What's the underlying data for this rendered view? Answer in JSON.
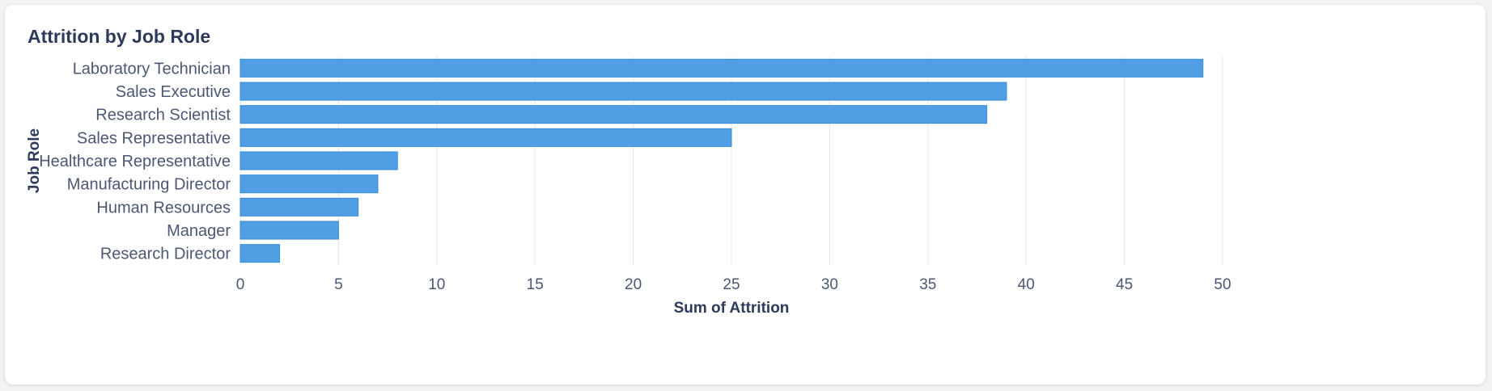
{
  "card": {
    "title": "Attrition by Job Role"
  },
  "colors": {
    "bar": "#509ee3",
    "bar_stroke": "#3a8bd6",
    "grid": "#e6e8eb",
    "text": "#4c5773",
    "title": "#2e3a59"
  },
  "chart_data": {
    "type": "bar",
    "orientation": "horizontal",
    "title": "Attrition by Job Role",
    "xlabel": "Sum of Attrition",
    "ylabel": "Job Role",
    "xlim": [
      0,
      50
    ],
    "x_ticks": [
      0,
      5,
      10,
      15,
      20,
      25,
      30,
      35,
      40,
      45,
      50
    ],
    "grid": true,
    "categories": [
      "Laboratory Technician",
      "Sales Executive",
      "Research Scientist",
      "Sales Representative",
      "Healthcare Representative",
      "Manufacturing Director",
      "Human Resources",
      "Manager",
      "Research Director"
    ],
    "values": [
      49,
      39,
      38,
      25,
      8,
      7,
      6,
      5,
      2
    ]
  }
}
